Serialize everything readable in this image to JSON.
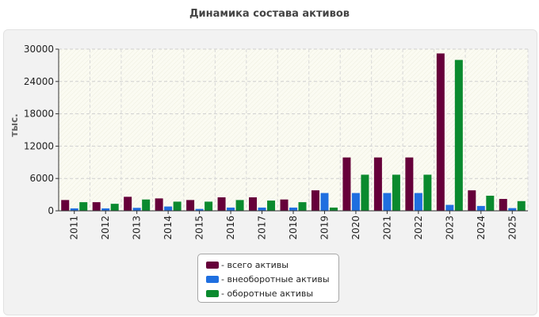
{
  "chart_data": {
    "type": "bar",
    "title": "Динамика состава активов",
    "ylabel": "тыс.",
    "xlabel": "",
    "ylim": [
      0,
      30000
    ],
    "yticks": [
      0,
      6000,
      12000,
      18000,
      24000,
      30000
    ],
    "grid": true,
    "legend_position": "bottom",
    "categories": [
      "2011",
      "2012",
      "2013",
      "2014",
      "2015",
      "2016",
      "2017",
      "2018",
      "2019",
      "2020",
      "2021",
      "2022",
      "2023",
      "2024",
      "2025"
    ],
    "series": [
      {
        "name": "- всего активы",
        "color": "#66003a",
        "values": [
          2000,
          1600,
          2600,
          2300,
          2000,
          2500,
          2500,
          2100,
          3800,
          9900,
          9900,
          9900,
          29200,
          3800,
          2200
        ]
      },
      {
        "name": "- внеоборотные активы",
        "color": "#1f6fe0",
        "values": [
          450,
          450,
          550,
          800,
          350,
          600,
          600,
          600,
          3300,
          3300,
          3300,
          3300,
          1100,
          900,
          500
        ]
      },
      {
        "name": "- оборотные активы",
        "color": "#0a8a2e",
        "values": [
          1600,
          1300,
          2100,
          1700,
          1700,
          2000,
          1900,
          1600,
          600,
          6700,
          6700,
          6700,
          28000,
          2800,
          1800
        ]
      }
    ]
  }
}
